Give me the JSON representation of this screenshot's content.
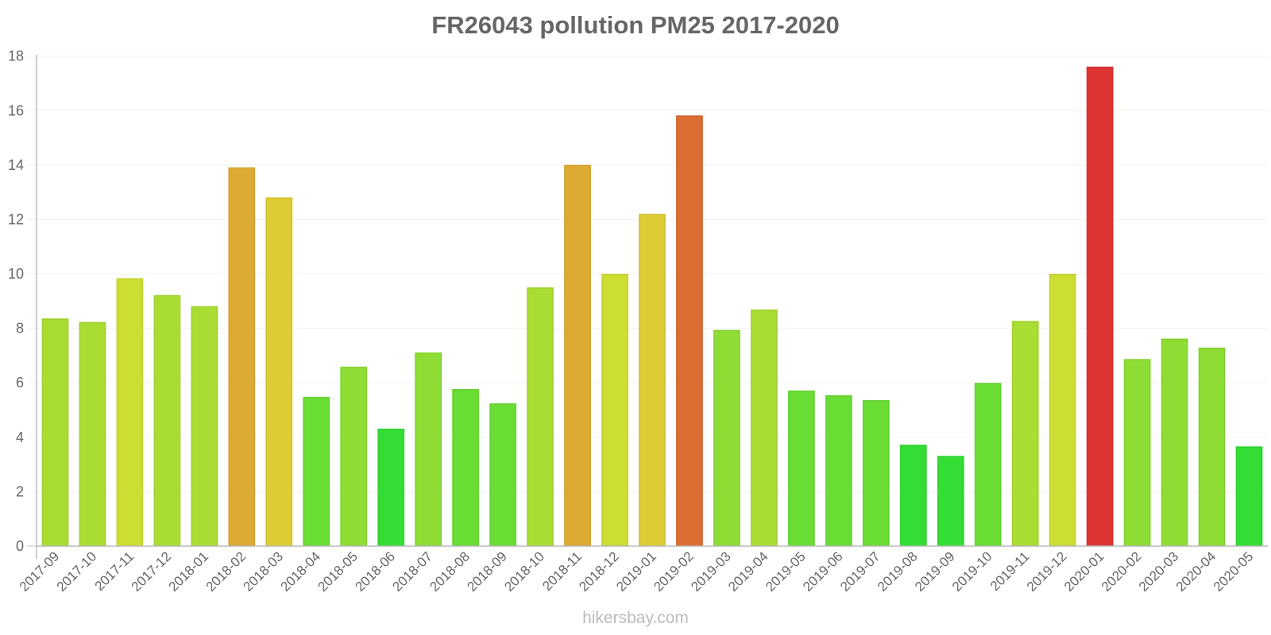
{
  "chart_data": {
    "type": "bar",
    "title": "FR26043 pollution PM25 2017-2020",
    "xlabel": "",
    "ylabel": "",
    "ylim": [
      0,
      18
    ],
    "yticks": [
      0,
      2,
      4,
      6,
      8,
      10,
      12,
      14,
      16,
      18
    ],
    "grid": true,
    "legend": null,
    "categories": [
      "2017-09",
      "2017-10",
      "2017-11",
      "2017-12",
      "2018-01",
      "2018-02",
      "2018-03",
      "2018-04",
      "2018-05",
      "2018-06",
      "2018-07",
      "2018-08",
      "2018-09",
      "2018-10",
      "2018-11",
      "2018-12",
      "2019-01",
      "2019-02",
      "2019-03",
      "2019-04",
      "2019-05",
      "2019-06",
      "2019-07",
      "2019-08",
      "2019-09",
      "2019-10",
      "2019-11",
      "2019-12",
      "2020-01",
      "2020-02",
      "2020-03",
      "2020-04",
      "2020-05"
    ],
    "values": [
      8.35,
      8.22,
      9.83,
      9.21,
      8.8,
      13.9,
      12.8,
      5.47,
      6.58,
      4.3,
      7.1,
      5.76,
      5.23,
      9.49,
      13.99,
      9.99,
      12.19,
      15.81,
      7.93,
      8.68,
      5.7,
      5.53,
      5.35,
      3.71,
      3.3,
      5.98,
      8.26,
      9.99,
      17.6,
      6.86,
      7.61,
      7.28,
      3.65
    ],
    "colors": [
      "#aadd33",
      "#aadd33",
      "#ccdd33",
      "#aadd33",
      "#aadd33",
      "#ddaa33",
      "#ddcc33",
      "#6add35",
      "#8ddd35",
      "#33dd33",
      "#8ddd35",
      "#6add35",
      "#6add35",
      "#aadd33",
      "#ddaa33",
      "#ccdd33",
      "#ddcc33",
      "#dd6e33",
      "#8ddd35",
      "#aadd33",
      "#6add35",
      "#6add35",
      "#6add35",
      "#33dd33",
      "#33dd33",
      "#6add35",
      "#aadd33",
      "#ccdd33",
      "#dd3333",
      "#8ddd35",
      "#8ddd35",
      "#8ddd35",
      "#33dd33"
    ]
  },
  "watermark": "hikersbay.com"
}
